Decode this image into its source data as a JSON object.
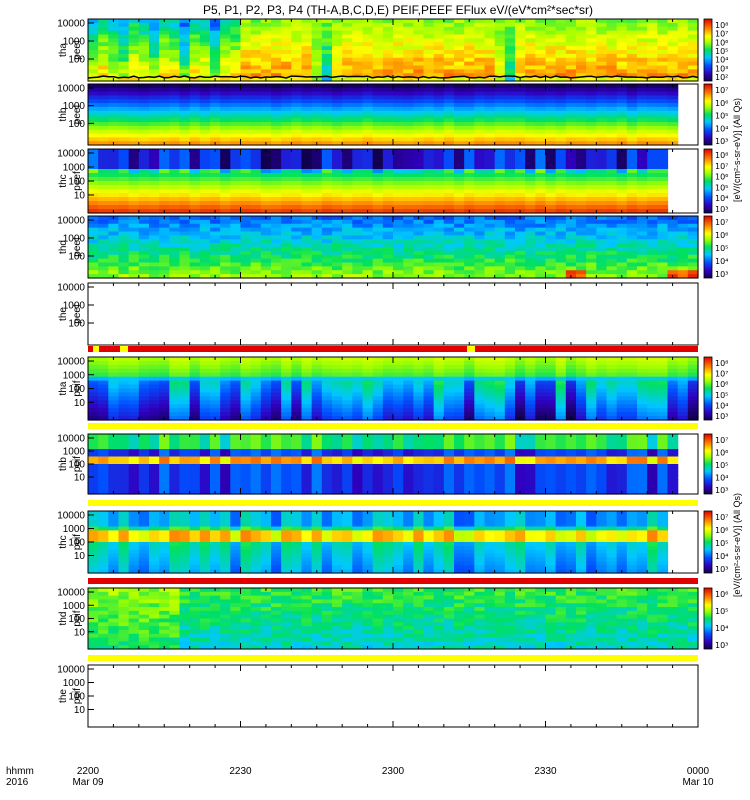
{
  "title": "P5, P1, P2, P3, P4 (TH-A,B,C,D,E) PEIF,PEEF EFlux eV/(eV*cm²*sec*sr)",
  "colorbar_label_top": "[eV/(cm²-s-sr-eV)] (All Qs)",
  "colorbar_label_bottom": "[eV/(cm²-s-sr-eV)] (All Qs)",
  "time_axis": {
    "row_labels": [
      "hhmm",
      "2016"
    ],
    "ticks": [
      {
        "hhmm": "2200",
        "date": "Mar 09"
      },
      {
        "hhmm": "2230",
        "date": ""
      },
      {
        "hhmm": "2300",
        "date": ""
      },
      {
        "hhmm": "2330",
        "date": ""
      },
      {
        "hhmm": "0000",
        "date": "Mar 10"
      }
    ]
  },
  "chart_data": [
    {
      "type": "heatmap",
      "probe": "tha",
      "product": "peef",
      "ylabel": [
        "tha",
        "peef"
      ],
      "yticks": [
        "10000",
        "1000",
        "100"
      ],
      "cbar_ticks": [
        "10⁸",
        "10⁷",
        "10⁶",
        "10⁵",
        "10⁴",
        "10³",
        "10²"
      ],
      "data_present": true
    },
    {
      "type": "heatmap",
      "probe": "thb",
      "product": "peef",
      "ylabel": [
        "thb",
        "peef"
      ],
      "yticks": [
        "10000",
        "1000",
        "100"
      ],
      "cbar_ticks": [
        "10⁷",
        "10⁶",
        "10⁵",
        "10⁴",
        "10³"
      ],
      "data_present": true
    },
    {
      "type": "heatmap",
      "probe": "thc",
      "product": "peef",
      "ylabel": [
        "thc",
        "peef"
      ],
      "yticks": [
        "10000",
        "1000",
        "100",
        "10"
      ],
      "cbar_ticks": [
        "10⁸",
        "10⁷",
        "10⁶",
        "10⁵",
        "10⁴",
        "10³"
      ],
      "data_present": true
    },
    {
      "type": "heatmap",
      "probe": "thd",
      "product": "peef",
      "ylabel": [
        "thd",
        "peef"
      ],
      "yticks": [
        "10000",
        "1000",
        "100"
      ],
      "cbar_ticks": [
        "10⁷",
        "10⁶",
        "10⁵",
        "10⁴",
        "10³"
      ],
      "data_present": true
    },
    {
      "type": "heatmap",
      "probe": "the",
      "product": "peef",
      "ylabel": [
        "the",
        "peef"
      ],
      "yticks": [
        "10000",
        "1000",
        "100"
      ],
      "cbar_ticks": [],
      "data_present": false
    },
    {
      "type": "heatmap",
      "probe": "tha",
      "product": "peif",
      "ylabel": [
        "tha",
        "peif"
      ],
      "yticks": [
        "10000",
        "1000",
        "100",
        "10"
      ],
      "cbar_ticks": [
        "10⁸",
        "10⁷",
        "10⁶",
        "10⁵",
        "10⁴",
        "10³"
      ],
      "data_present": true
    },
    {
      "type": "heatmap",
      "probe": "thb",
      "product": "peif",
      "ylabel": [
        "thb",
        "peif"
      ],
      "yticks": [
        "10000",
        "1000",
        "100",
        "10"
      ],
      "cbar_ticks": [
        "10⁷",
        "10⁶",
        "10⁵",
        "10⁴",
        "10³"
      ],
      "data_present": true
    },
    {
      "type": "heatmap",
      "probe": "thc",
      "product": "peif",
      "ylabel": [
        "thc",
        "peif"
      ],
      "yticks": [
        "10000",
        "1000",
        "100",
        "10"
      ],
      "cbar_ticks": [
        "10⁷",
        "10⁶",
        "10⁵",
        "10⁴",
        "10³"
      ],
      "data_present": true
    },
    {
      "type": "heatmap",
      "probe": "thd",
      "product": "peif",
      "ylabel": [
        "thd",
        "peif"
      ],
      "yticks": [
        "10000",
        "1000",
        "100",
        "10"
      ],
      "cbar_ticks": [
        "10⁶",
        "10⁵",
        "10⁴",
        "10³"
      ],
      "data_present": true
    },
    {
      "type": "heatmap",
      "probe": "the",
      "product": "peif",
      "ylabel": [
        "the",
        "peif"
      ],
      "yticks": [
        "10000",
        "1000",
        "100",
        "10"
      ],
      "cbar_ticks": [],
      "data_present": false
    }
  ]
}
